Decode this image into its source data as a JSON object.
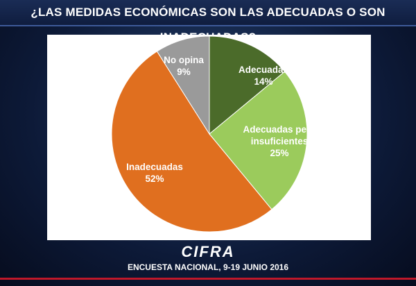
{
  "chart_data": {
    "type": "pie",
    "title": "¿LAS MEDIDAS ECONÓMICAS SON LAS ADECUADAS O SON INADECUADAS?",
    "categories": [
      "Adecuadas",
      "Adecuadas pero insuficientes",
      "Inadecuadas",
      "No opina"
    ],
    "values": [
      14,
      25,
      52,
      9
    ],
    "value_labels": [
      "14%",
      "25%",
      "52%",
      "9%"
    ],
    "colors": [
      "#4b6b2a",
      "#9bcb5c",
      "#e06f1f",
      "#9a9a9a"
    ],
    "logo": "CIFRA",
    "note": "ENCUESTA NACIONAL,  9-19 JUNIO 2016"
  }
}
